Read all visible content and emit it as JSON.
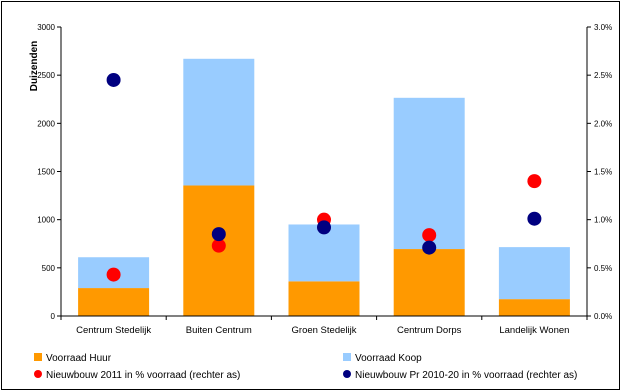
{
  "chart_data": {
    "type": "bar",
    "stacked": true,
    "categories": [
      "Centrum Stedelijk",
      "Buiten Centrum",
      "Groen Stedelijk",
      "Centrum Dorps",
      "Landelijk Wonen"
    ],
    "ylabel": "Duizenden",
    "ylim": [
      0,
      3000
    ],
    "yticks": [
      "0",
      "500",
      "1000",
      "1500",
      "2000",
      "2500",
      "3000"
    ],
    "ytick_values": [
      0,
      500,
      1000,
      1500,
      2000,
      2500,
      3000
    ],
    "y2lim": [
      0,
      3.0
    ],
    "y2ticks": [
      "0.0%",
      "0.5%",
      "1.0%",
      "1.5%",
      "2.0%",
      "2.5%",
      "3.0%"
    ],
    "y2tick_values": [
      0,
      0.5,
      1.0,
      1.5,
      2.0,
      2.5,
      3.0
    ],
    "grid": false,
    "legend_position": "bottom",
    "bar_series": [
      {
        "name": "Voorraad Huur",
        "color": "#ff9900",
        "values": [
          290,
          1355,
          360,
          695,
          175
        ]
      },
      {
        "name": "Voorraad Koop",
        "color": "#99ccff",
        "values": [
          320,
          1315,
          590,
          1570,
          540
        ]
      }
    ],
    "point_series": [
      {
        "name": "Nieuwbouw 2011 in % voorraad (rechter as)",
        "color": "#ff0000",
        "axis": "right",
        "values": [
          0.43,
          0.73,
          1.0,
          0.84,
          1.4
        ]
      },
      {
        "name": "Nieuwbouw Pr 2010-20 in % voorraad (rechter as)",
        "color": "#000080",
        "axis": "right",
        "values": [
          2.45,
          0.85,
          0.92,
          0.71,
          1.01
        ]
      }
    ]
  }
}
